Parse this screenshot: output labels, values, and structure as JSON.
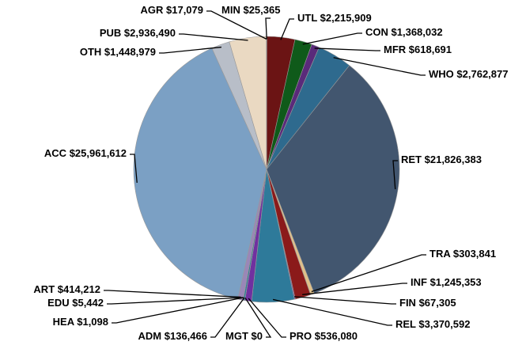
{
  "chart_data": {
    "type": "pie",
    "categories": [
      "MIN",
      "UTL",
      "CON",
      "MFR",
      "WHO",
      "RET",
      "TRA",
      "INF",
      "FIN",
      "REL",
      "PRO",
      "MGT",
      "ADM",
      "HEA",
      "EDU",
      "ART",
      "ACC",
      "OTH",
      "PUB",
      "AGR"
    ],
    "values": [
      25365,
      2215909,
      1368032,
      618691,
      2762877,
      21826383,
      303841,
      1245353,
      67305,
      3370592,
      536080,
      0,
      136466,
      1098,
      5442,
      414212,
      25961612,
      1448979,
      2936490,
      17079
    ],
    "value_labels": [
      "$25,365",
      "$2,215,909",
      "$1,368,032",
      "$618,691",
      "$2,762,877",
      "$21,826,383",
      "$303,841",
      "$1,245,353",
      "$67,305",
      "$3,370,592",
      "$536,080",
      "$0",
      "$136,466",
      "$1,098",
      "$5,442",
      "$414,212",
      "$25,961,612",
      "$1,448,979",
      "$2,936,490",
      "$17,079"
    ],
    "colors": [
      "#7a1a1a",
      "#6b1414",
      "#0f5a1a",
      "#5a2a7a",
      "#2e6a8e",
      "#42566f",
      "#e0c08a",
      "#8b1a1a",
      "#7030a0",
      "#2e7a9a",
      "#7030a0",
      "#888888",
      "#2e7a9a",
      "#8fb0d0",
      "#c0c8d8",
      "#9a86b8",
      "#7ba0c4",
      "#b8bec8",
      "#ead9c2",
      "#e8d0a8"
    ]
  }
}
